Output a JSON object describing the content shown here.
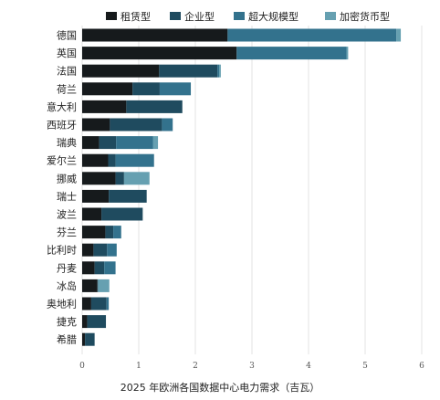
{
  "chart_data": {
    "type": "bar",
    "orientation": "horizontal",
    "stacked": true,
    "xlabel": "2025 年欧洲各国数据中心电力需求（吉瓦）",
    "ylabel": "",
    "xlim": [
      0,
      6
    ],
    "xticks": [
      0,
      1,
      2,
      3,
      4,
      5,
      6
    ],
    "grid": true,
    "legend_position": "top",
    "categories": [
      "德国",
      "英国",
      "法国",
      "荷兰",
      "意大利",
      "西班牙",
      "瑞典",
      "爱尔兰",
      "挪威",
      "瑞士",
      "波兰",
      "芬兰",
      "比利时",
      "丹麦",
      "冰岛",
      "奥地利",
      "捷克",
      "希腊"
    ],
    "series": [
      {
        "name": "租赁型",
        "color": "#161a1c",
        "values": [
          2.57,
          2.73,
          1.36,
          0.89,
          0.78,
          0.49,
          0.3,
          0.46,
          0.59,
          0.47,
          0.34,
          0.41,
          0.2,
          0.22,
          0.27,
          0.16,
          0.09,
          0.05
        ]
      },
      {
        "name": "企业型",
        "color": "#1f4b5f",
        "values": [
          0,
          0,
          1.03,
          0.48,
          0.99,
          0.92,
          0.3,
          0.13,
          0.15,
          0.67,
          0.73,
          0.14,
          0.24,
          0.17,
          0.01,
          0.27,
          0.33,
          0.17
        ]
      },
      {
        "name": "超大规模型",
        "color": "#33728d",
        "values": [
          2.98,
          1.94,
          0.03,
          0.55,
          0,
          0.19,
          0.65,
          0.68,
          0,
          0,
          0,
          0.14,
          0.17,
          0.2,
          0,
          0.04,
          0,
          0
        ]
      },
      {
        "name": "加密货币型",
        "color": "#66a0b1",
        "values": [
          0.08,
          0.03,
          0.03,
          0,
          0,
          0,
          0.09,
          0,
          0.45,
          0,
          0,
          0,
          0,
          0,
          0.2,
          0,
          0,
          0
        ]
      }
    ]
  }
}
